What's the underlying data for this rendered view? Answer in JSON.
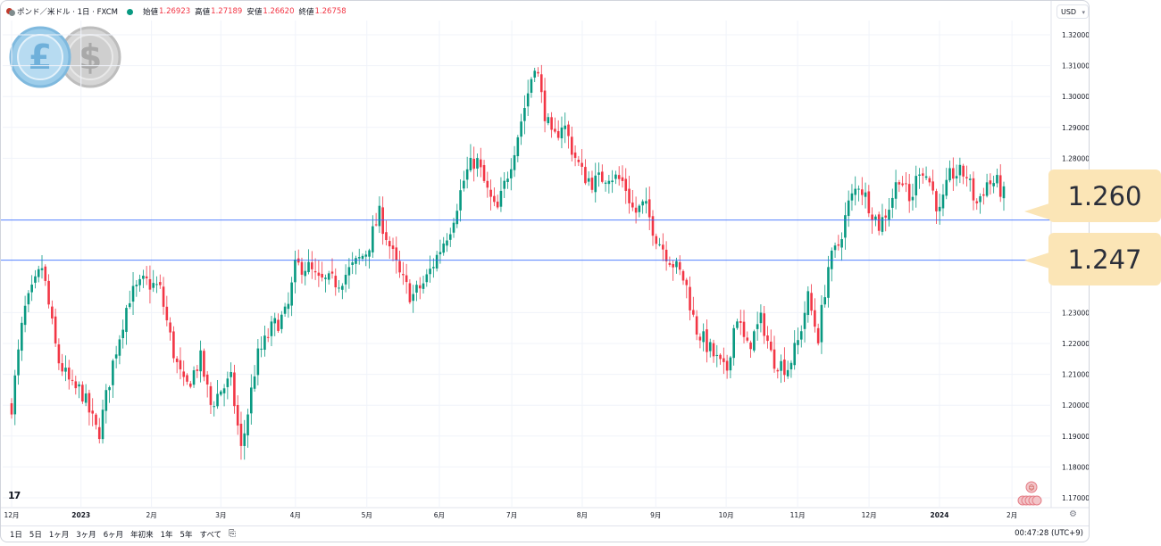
{
  "header": {
    "symbol": "ポンド／米ドル · 1日 · FXCM",
    "open_label": "始値",
    "open_value": "1.26923",
    "high_label": "高値",
    "high_value": "1.27189",
    "low_label": "安値",
    "low_value": "1.26620",
    "close_label": "終値",
    "close_value": "1.26758",
    "currency_select": "USD"
  },
  "periods": [
    "1日",
    "5日",
    "1ヶ月",
    "3ヶ月",
    "6ヶ月",
    "年初来",
    "1年",
    "5年",
    "すべて"
  ],
  "clock": "00:47:28 (UTC+9)",
  "logo_text": "17",
  "colors": {
    "up": "#089981",
    "down": "#f23645",
    "hline": "#2962ff",
    "callout": "#fbe5b6"
  },
  "callouts": [
    "1.260",
    "1.247"
  ],
  "chart_data": {
    "type": "candlestick",
    "title": "ポンド／米ドル · 1日 · FXCM",
    "ylim": [
      1.165,
      1.325
    ],
    "y_ticks": [
      "1.32000",
      "1.31000",
      "1.30000",
      "1.29000",
      "1.28000",
      "1.23000",
      "1.22000",
      "1.21000",
      "1.20000",
      "1.19000",
      "1.18000",
      "1.17000"
    ],
    "x_ticks": [
      {
        "label": "12月",
        "t": 0
      },
      {
        "label": "2023",
        "t": 0.068
      },
      {
        "label": "2月",
        "t": 0.137
      },
      {
        "label": "3月",
        "t": 0.205
      },
      {
        "label": "4月",
        "t": 0.278
      },
      {
        "label": "5月",
        "t": 0.348
      },
      {
        "label": "6月",
        "t": 0.419
      },
      {
        "label": "7月",
        "t": 0.49
      },
      {
        "label": "8月",
        "t": 0.559
      },
      {
        "label": "9月",
        "t": 0.631
      },
      {
        "label": "10月",
        "t": 0.7
      },
      {
        "label": "11月",
        "t": 0.77
      },
      {
        "label": "12月",
        "t": 0.84
      },
      {
        "label": "2024",
        "t": 0.909
      },
      {
        "label": "2月",
        "t": 0.98
      }
    ],
    "date_range": [
      "2022-12-01",
      "2024-01-31"
    ],
    "horizontal_lines": [
      1.26,
      1.247
    ],
    "path_knots": [
      [
        0.0,
        1.2
      ],
      [
        0.012,
        1.23
      ],
      [
        0.03,
        1.245
      ],
      [
        0.045,
        1.215
      ],
      [
        0.06,
        1.205
      ],
      [
        0.068,
        1.205
      ],
      [
        0.085,
        1.19
      ],
      [
        0.1,
        1.215
      ],
      [
        0.115,
        1.235
      ],
      [
        0.13,
        1.24
      ],
      [
        0.145,
        1.238
      ],
      [
        0.16,
        1.215
      ],
      [
        0.17,
        1.205
      ],
      [
        0.185,
        1.215
      ],
      [
        0.195,
        1.2
      ],
      [
        0.205,
        1.205
      ],
      [
        0.215,
        1.208
      ],
      [
        0.225,
        1.185
      ],
      [
        0.24,
        1.215
      ],
      [
        0.255,
        1.225
      ],
      [
        0.27,
        1.23
      ],
      [
        0.278,
        1.245
      ],
      [
        0.29,
        1.245
      ],
      [
        0.3,
        1.24
      ],
      [
        0.32,
        1.24
      ],
      [
        0.335,
        1.245
      ],
      [
        0.348,
        1.25
      ],
      [
        0.36,
        1.262
      ],
      [
        0.37,
        1.252
      ],
      [
        0.38,
        1.242
      ],
      [
        0.392,
        1.235
      ],
      [
        0.405,
        1.24
      ],
      [
        0.419,
        1.25
      ],
      [
        0.43,
        1.258
      ],
      [
        0.445,
        1.275
      ],
      [
        0.455,
        1.28
      ],
      [
        0.465,
        1.27
      ],
      [
        0.475,
        1.262
      ],
      [
        0.49,
        1.28
      ],
      [
        0.505,
        1.3
      ],
      [
        0.513,
        1.312
      ],
      [
        0.52,
        1.298
      ],
      [
        0.53,
        1.285
      ],
      [
        0.54,
        1.292
      ],
      [
        0.55,
        1.282
      ],
      [
        0.559,
        1.275
      ],
      [
        0.57,
        1.272
      ],
      [
        0.585,
        1.275
      ],
      [
        0.6,
        1.272
      ],
      [
        0.61,
        1.262
      ],
      [
        0.62,
        1.265
      ],
      [
        0.631,
        1.255
      ],
      [
        0.64,
        1.25
      ],
      [
        0.65,
        1.245
      ],
      [
        0.66,
        1.24
      ],
      [
        0.67,
        1.225
      ],
      [
        0.68,
        1.22
      ],
      [
        0.69,
        1.215
      ],
      [
        0.7,
        1.21
      ],
      [
        0.71,
        1.23
      ],
      [
        0.72,
        1.218
      ],
      [
        0.735,
        1.228
      ],
      [
        0.745,
        1.215
      ],
      [
        0.76,
        1.212
      ],
      [
        0.77,
        1.22
      ],
      [
        0.78,
        1.235
      ],
      [
        0.79,
        1.222
      ],
      [
        0.8,
        1.245
      ],
      [
        0.81,
        1.252
      ],
      [
        0.82,
        1.265
      ],
      [
        0.83,
        1.272
      ],
      [
        0.84,
        1.265
      ],
      [
        0.85,
        1.258
      ],
      [
        0.86,
        1.265
      ],
      [
        0.87,
        1.275
      ],
      [
        0.88,
        1.265
      ],
      [
        0.89,
        1.278
      ],
      [
        0.9,
        1.272
      ],
      [
        0.909,
        1.262
      ],
      [
        0.92,
        1.275
      ],
      [
        0.935,
        1.275
      ],
      [
        0.945,
        1.265
      ],
      [
        0.955,
        1.272
      ],
      [
        0.965,
        1.272
      ],
      [
        0.972,
        1.268
      ]
    ]
  }
}
